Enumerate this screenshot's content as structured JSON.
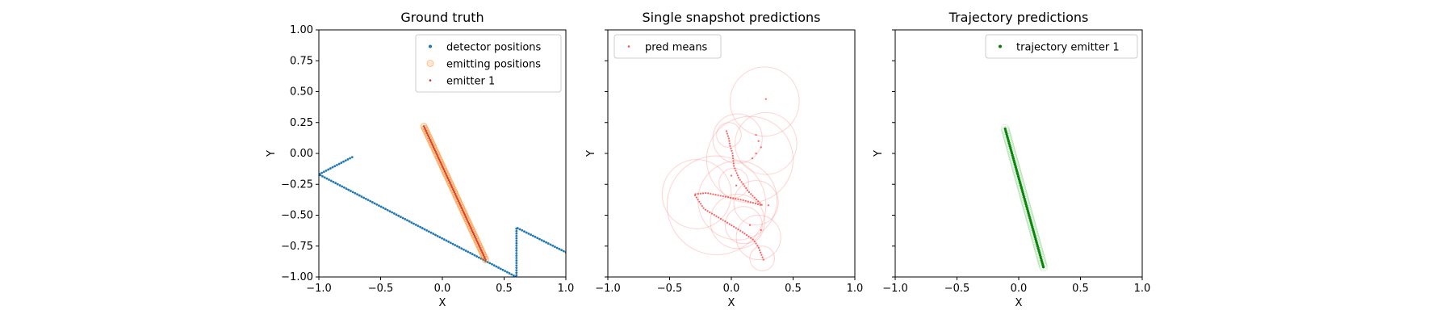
{
  "chart_data": [
    {
      "type": "scatter",
      "title": "Ground truth",
      "xlabel": "X",
      "ylabel": "Y",
      "xlim": [
        -1.0,
        1.0
      ],
      "ylim": [
        -1.0,
        1.0
      ],
      "xticks": [
        -1.0,
        -0.5,
        0.0,
        0.5,
        1.0
      ],
      "yticks": [
        -1.0,
        -0.75,
        -0.5,
        -0.25,
        0.0,
        0.25,
        0.5,
        0.75,
        1.0
      ],
      "xtick_labels": [
        "−1.0",
        "−0.5",
        "0.0",
        "0.5",
        "1.0"
      ],
      "ytick_labels": [
        "−1.00",
        "−0.75",
        "−0.50",
        "−0.25",
        "0.00",
        "0.25",
        "0.50",
        "0.75",
        "1.00"
      ],
      "show_yticklabels": true,
      "grid": false,
      "legend_position": "top-right",
      "legend": [
        {
          "label": "detector positions",
          "color": "#1f77b4",
          "marker": "dot"
        },
        {
          "label": "emitting positions",
          "color": "#ff7f0e",
          "marker": "ring"
        },
        {
          "label": "emitter 1",
          "color": "#d62728",
          "marker": "small-dot"
        }
      ],
      "series": [
        {
          "name": "detector positions",
          "color": "#1f77b4",
          "path": [
            [
              -0.73,
              -0.03
            ],
            [
              -1.0,
              -0.17
            ],
            [
              0.6,
              -1.0
            ],
            [
              0.6,
              -0.6
            ],
            [
              1.0,
              -0.8
            ]
          ],
          "n_points": 150
        },
        {
          "name": "emitting positions",
          "color": "#ff7f0e",
          "path": [
            [
              -0.15,
              0.22
            ],
            [
              0.35,
              -0.86
            ]
          ],
          "n_points": 60
        },
        {
          "name": "emitter 1",
          "color": "#d62728",
          "path": [
            [
              -0.15,
              0.22
            ],
            [
              0.35,
              -0.86
            ]
          ],
          "n_points": 90
        }
      ]
    },
    {
      "type": "scatter",
      "title": "Single snapshot predictions",
      "xlabel": "X",
      "ylabel": "Y",
      "xlim": [
        -1.0,
        1.0
      ],
      "ylim": [
        -1.0,
        1.0
      ],
      "xticks": [
        -1.0,
        -0.5,
        0.0,
        0.5,
        1.0
      ],
      "yticks": [
        -1.0,
        -0.75,
        -0.5,
        -0.25,
        0.0,
        0.25,
        0.5,
        0.75,
        1.0
      ],
      "xtick_labels": [
        "−1.0",
        "−0.5",
        "0.0",
        "0.5",
        "1.0"
      ],
      "ytick_labels": [],
      "show_yticklabels": false,
      "grid": false,
      "legend_position": "top-left",
      "legend": [
        {
          "label": "pred means",
          "color": "#ff4d4d",
          "marker": "small-dot"
        }
      ],
      "series": [
        {
          "name": "pred means",
          "color": "#ff4d4d",
          "path": [
            [
              -0.04,
              0.18
            ],
            [
              -0.02,
              0.12
            ],
            [
              -0.01,
              0.06
            ],
            [
              0.01,
              0.0
            ],
            [
              0.02,
              -0.1
            ],
            [
              0.06,
              -0.2
            ],
            [
              0.14,
              -0.31
            ],
            [
              0.25,
              -0.42
            ],
            [
              0.1,
              -0.38
            ],
            [
              -0.05,
              -0.35
            ],
            [
              -0.2,
              -0.32
            ],
            [
              -0.3,
              -0.33
            ],
            [
              -0.22,
              -0.45
            ],
            [
              -0.05,
              -0.55
            ],
            [
              0.08,
              -0.63
            ],
            [
              0.18,
              -0.7
            ],
            [
              0.22,
              -0.76
            ],
            [
              0.26,
              -0.86
            ]
          ],
          "extra_points": [
            [
              0.28,
              0.44
            ],
            [
              0.2,
              0.15
            ],
            [
              0.22,
              0.1
            ],
            [
              0.24,
              0.05
            ],
            [
              0.2,
              0.0
            ],
            [
              0.17,
              -0.04
            ],
            [
              0.0,
              -0.18
            ],
            [
              0.04,
              -0.26
            ],
            [
              0.3,
              -0.42
            ],
            [
              0.15,
              -0.58
            ],
            [
              0.24,
              -0.62
            ]
          ],
          "n_points": 100
        }
      ],
      "uncertainty_circles": [
        {
          "cx": 0.27,
          "cy": 0.42,
          "r": 0.28
        },
        {
          "cx": 0.28,
          "cy": 0.08,
          "r": 0.25
        },
        {
          "cx": 0.05,
          "cy": 0.12,
          "r": 0.2
        },
        {
          "cx": -0.02,
          "cy": 0.15,
          "r": 0.1
        },
        {
          "cx": 0.15,
          "cy": -0.05,
          "r": 0.35
        },
        {
          "cx": 0.02,
          "cy": -0.24,
          "r": 0.12
        },
        {
          "cx": -0.28,
          "cy": -0.33,
          "r": 0.28
        },
        {
          "cx": -0.12,
          "cy": -0.42,
          "r": 0.4
        },
        {
          "cx": 0.05,
          "cy": -0.38,
          "r": 0.32
        },
        {
          "cx": 0.2,
          "cy": -0.4,
          "r": 0.18
        },
        {
          "cx": 0.1,
          "cy": -0.58,
          "r": 0.15
        },
        {
          "cx": 0.22,
          "cy": -0.68,
          "r": 0.18
        },
        {
          "cx": 0.25,
          "cy": -0.85,
          "r": 0.1
        },
        {
          "cx": 0.05,
          "cy": -0.55,
          "r": 0.22
        }
      ]
    },
    {
      "type": "scatter",
      "title": "Trajectory predictions",
      "xlabel": "X",
      "ylabel": "Y",
      "xlim": [
        -1.0,
        1.0
      ],
      "ylim": [
        -1.0,
        1.0
      ],
      "xticks": [
        -1.0,
        -0.5,
        0.0,
        0.5,
        1.0
      ],
      "yticks": [
        -1.0,
        -0.75,
        -0.5,
        -0.25,
        0.0,
        0.25,
        0.5,
        0.75,
        1.0
      ],
      "xtick_labels": [
        "−1.0",
        "−0.5",
        "0.0",
        "0.5",
        "1.0"
      ],
      "ytick_labels": [],
      "show_yticklabels": false,
      "grid": false,
      "legend_position": "top-right",
      "legend": [
        {
          "label": "trajectory emitter 1",
          "color": "#008000",
          "marker": "dot"
        }
      ],
      "series": [
        {
          "name": "trajectory emitter 1",
          "color": "#008000",
          "path": [
            [
              -0.11,
              0.2
            ],
            [
              0.2,
              -0.92
            ]
          ],
          "n_points": 80
        }
      ]
    }
  ]
}
